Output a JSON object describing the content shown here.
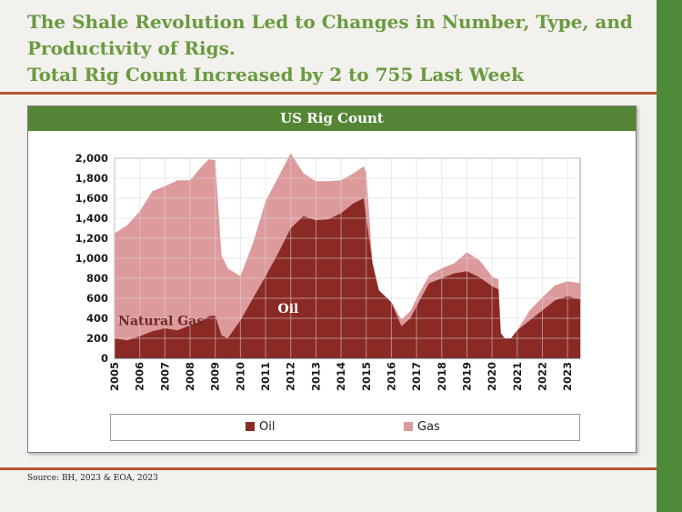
{
  "slide": {
    "title_lines": [
      "The Shale Revolution Led to Changes in Number, Type, and",
      "Productivity of Rigs.",
      "Total Rig Count Increased by 2 to 755 Last Week"
    ],
    "source": "Source: BH, 2023 & EOA, 2023",
    "colors": {
      "title_green": "#6a9a3e",
      "header_green": "#548535",
      "side_bar": "#4f8a3a",
      "rule": "#b5542f"
    }
  },
  "chart_data": {
    "type": "area",
    "stacked": true,
    "title": "US Rig Count",
    "xlabel": "",
    "ylabel": "",
    "x_ticks": [
      "2005",
      "2006",
      "2007",
      "2008",
      "2009",
      "2010",
      "2011",
      "2012",
      "2013",
      "2014",
      "2015",
      "2016",
      "2017",
      "2018",
      "2019",
      "2020",
      "2021",
      "2022",
      "2023"
    ],
    "xlim": [
      2005,
      2023.5
    ],
    "ylim": [
      0,
      2000
    ],
    "y_ticks": [
      "0",
      "200",
      "400",
      "600",
      "800",
      "1,000",
      "1,200",
      "1,400",
      "1,600",
      "1,800",
      "2,000"
    ],
    "grid": true,
    "legend": "bottom",
    "x": [
      2005.0,
      2005.5,
      2006.0,
      2006.5,
      2007.0,
      2007.5,
      2008.0,
      2008.5,
      2008.75,
      2009.0,
      2009.25,
      2009.5,
      2010.0,
      2010.5,
      2011.0,
      2011.5,
      2012.0,
      2012.5,
      2013.0,
      2013.5,
      2014.0,
      2014.5,
      2014.9,
      2015.0,
      2015.25,
      2015.5,
      2015.75,
      2016.0,
      2016.4,
      2016.75,
      2017.0,
      2017.5,
      2018.0,
      2018.5,
      2019.0,
      2019.5,
      2020.0,
      2020.25,
      2020.35,
      2020.5,
      2020.75,
      2021.0,
      2021.5,
      2022.0,
      2022.5,
      2023.0,
      2023.5
    ],
    "series": [
      {
        "name": "Oil",
        "color": "#8b2a24",
        "values": [
          200,
          180,
          220,
          270,
          300,
          280,
          330,
          380,
          420,
          430,
          230,
          200,
          380,
          600,
          820,
          1050,
          1300,
          1420,
          1380,
          1390,
          1450,
          1550,
          1600,
          1400,
          950,
          680,
          620,
          560,
          320,
          400,
          520,
          750,
          800,
          850,
          870,
          810,
          720,
          690,
          250,
          200,
          200,
          280,
          380,
          480,
          580,
          620,
          590
        ]
      },
      {
        "name": "Gas",
        "color": "#dd9a9c",
        "values": [
          1050,
          1150,
          1250,
          1400,
          1420,
          1500,
          1450,
          1550,
          1570,
          1550,
          800,
          700,
          440,
          550,
          750,
          760,
          750,
          430,
          390,
          380,
          330,
          300,
          320,
          450,
          0,
          0,
          0,
          0,
          70,
          70,
          80,
          80,
          100,
          100,
          190,
          170,
          100,
          100,
          0,
          0,
          0,
          0,
          100,
          130,
          150,
          150,
          160
        ]
      }
    ],
    "annotations": [
      "Natural Gas",
      "Oil"
    ]
  }
}
